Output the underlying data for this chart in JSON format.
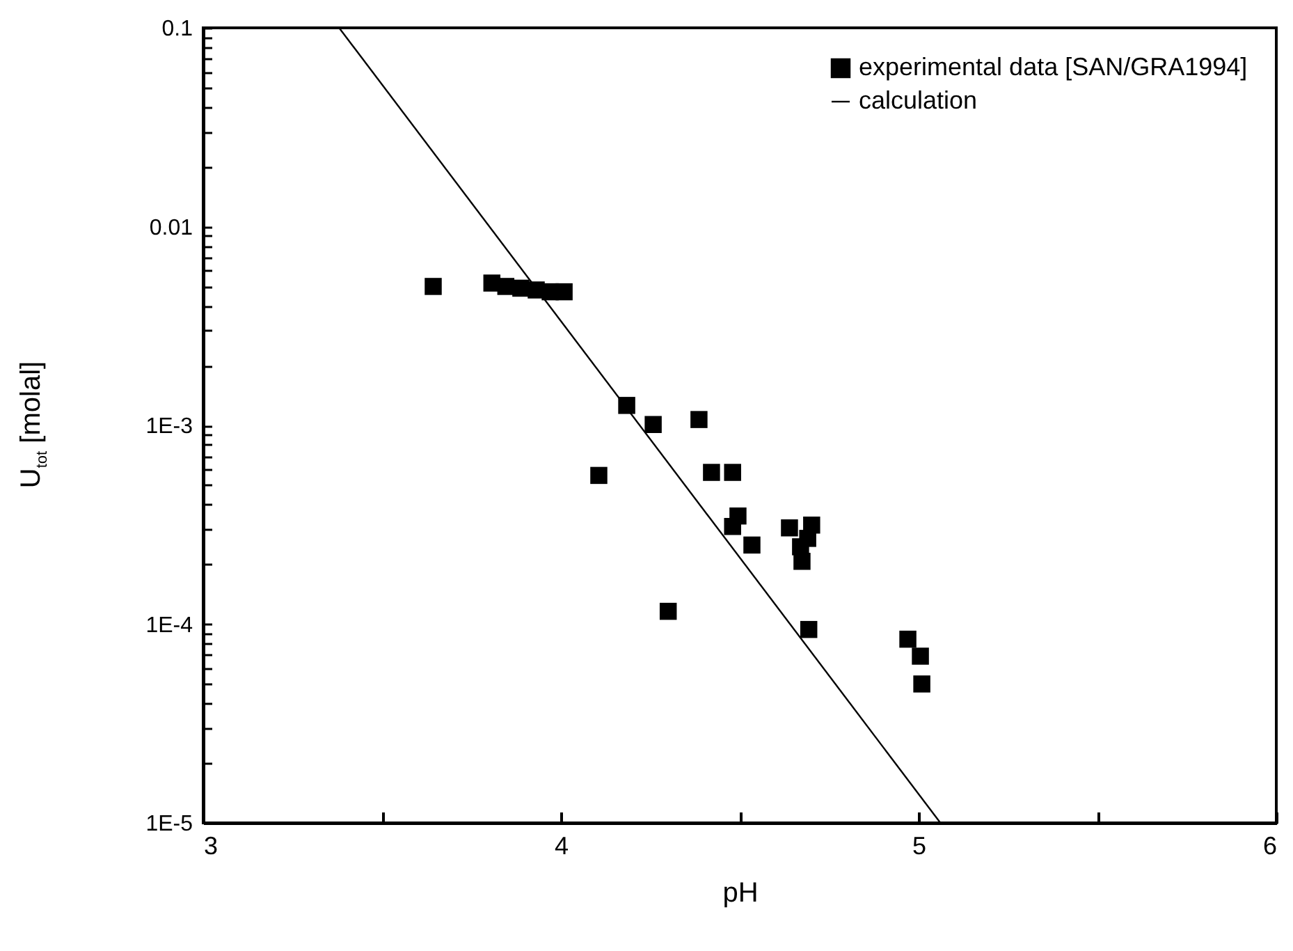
{
  "chart_data": {
    "type": "scatter",
    "xlabel": "pH",
    "ylabel": "U$_{tot}$ [molal]",
    "xlim": [
      3,
      6
    ],
    "xticks": [
      3,
      {
        "value": 3.5,
        "label": null
      },
      4,
      {
        "value": 4.5,
        "label": null
      },
      5,
      {
        "value": 5.5,
        "label": null
      },
      6
    ],
    "ylim": [
      1e-05,
      0.1
    ],
    "log": "y",
    "yticks": [
      {
        "value": 1e-05,
        "label": "1E-5"
      },
      {
        "value": 2e-05,
        "label": null
      },
      {
        "value": 3e-05,
        "label": null
      },
      {
        "value": 4e-05,
        "label": null
      },
      {
        "value": 5e-05,
        "label": null
      },
      {
        "value": 6e-05,
        "label": null
      },
      {
        "value": 7e-05,
        "label": null
      },
      {
        "value": 8e-05,
        "label": null
      },
      {
        "value": 9e-05,
        "label": null
      },
      {
        "value": 0.0001,
        "label": "1E-4"
      },
      {
        "value": 0.0002,
        "label": null
      },
      {
        "value": 0.0003,
        "label": null
      },
      {
        "value": 0.0004,
        "label": null
      },
      {
        "value": 0.0005,
        "label": null
      },
      {
        "value": 0.0006,
        "label": null
      },
      {
        "value": 0.0007,
        "label": null
      },
      {
        "value": 0.0008,
        "label": null
      },
      {
        "value": 0.0009,
        "label": null
      },
      {
        "value": 0.001,
        "label": "1E-3"
      },
      {
        "value": 0.002,
        "label": null
      },
      {
        "value": 0.003,
        "label": null
      },
      {
        "value": 0.004,
        "label": null
      },
      {
        "value": 0.005,
        "label": null
      },
      {
        "value": 0.006,
        "label": null
      },
      {
        "value": 0.007,
        "label": null
      },
      {
        "value": 0.008,
        "label": null
      },
      {
        "value": 0.009,
        "label": null
      },
      0.01,
      {
        "value": 0.02,
        "label": null
      },
      {
        "value": 0.03,
        "label": null
      },
      {
        "value": 0.04,
        "label": null
      },
      {
        "value": 0.05,
        "label": null
      },
      {
        "value": 0.06,
        "label": null
      },
      {
        "value": 0.07,
        "label": null
      },
      {
        "value": 0.08,
        "label": null
      },
      {
        "value": 0.09,
        "label": null
      },
      0.1
    ],
    "grid": false,
    "legend": "top right",
    "marker": "square",
    "series": [
      {
        "name": "experimental data [SAN/GRA1994]",
        "color": "#000000",
        "x": [
          3.643,
          3.807,
          3.846,
          3.888,
          3.931,
          3.97,
          4.009,
          4.184,
          4.258,
          4.386,
          4.106,
          4.421,
          4.48,
          4.495,
          4.48,
          4.534,
          4.639,
          4.701,
          4.69,
          4.67,
          4.674,
          4.3,
          4.693,
          4.97,
          5.005,
          5.009
        ],
        "values": [
          0.005,
          0.0052,
          0.005,
          0.0049,
          0.0048,
          0.0047,
          0.0047,
          0.00126,
          0.00101,
          0.00107,
          0.00056,
          0.00058,
          0.00058,
          0.00035,
          0.00031,
          0.00025,
          0.000305,
          0.000315,
          0.00027,
          0.000245,
          0.000207,
          0.000116,
          9.4e-05,
          8.4e-05,
          6.9e-05,
          5e-05
        ]
      },
      {
        "name": "calculation",
        "type": "line",
        "color": "#000000",
        "line_style": "solid",
        "marker": "none",
        "x": [
          3.38,
          5.061
        ],
        "values": [
          0.1,
          1e-05
        ]
      }
    ]
  }
}
